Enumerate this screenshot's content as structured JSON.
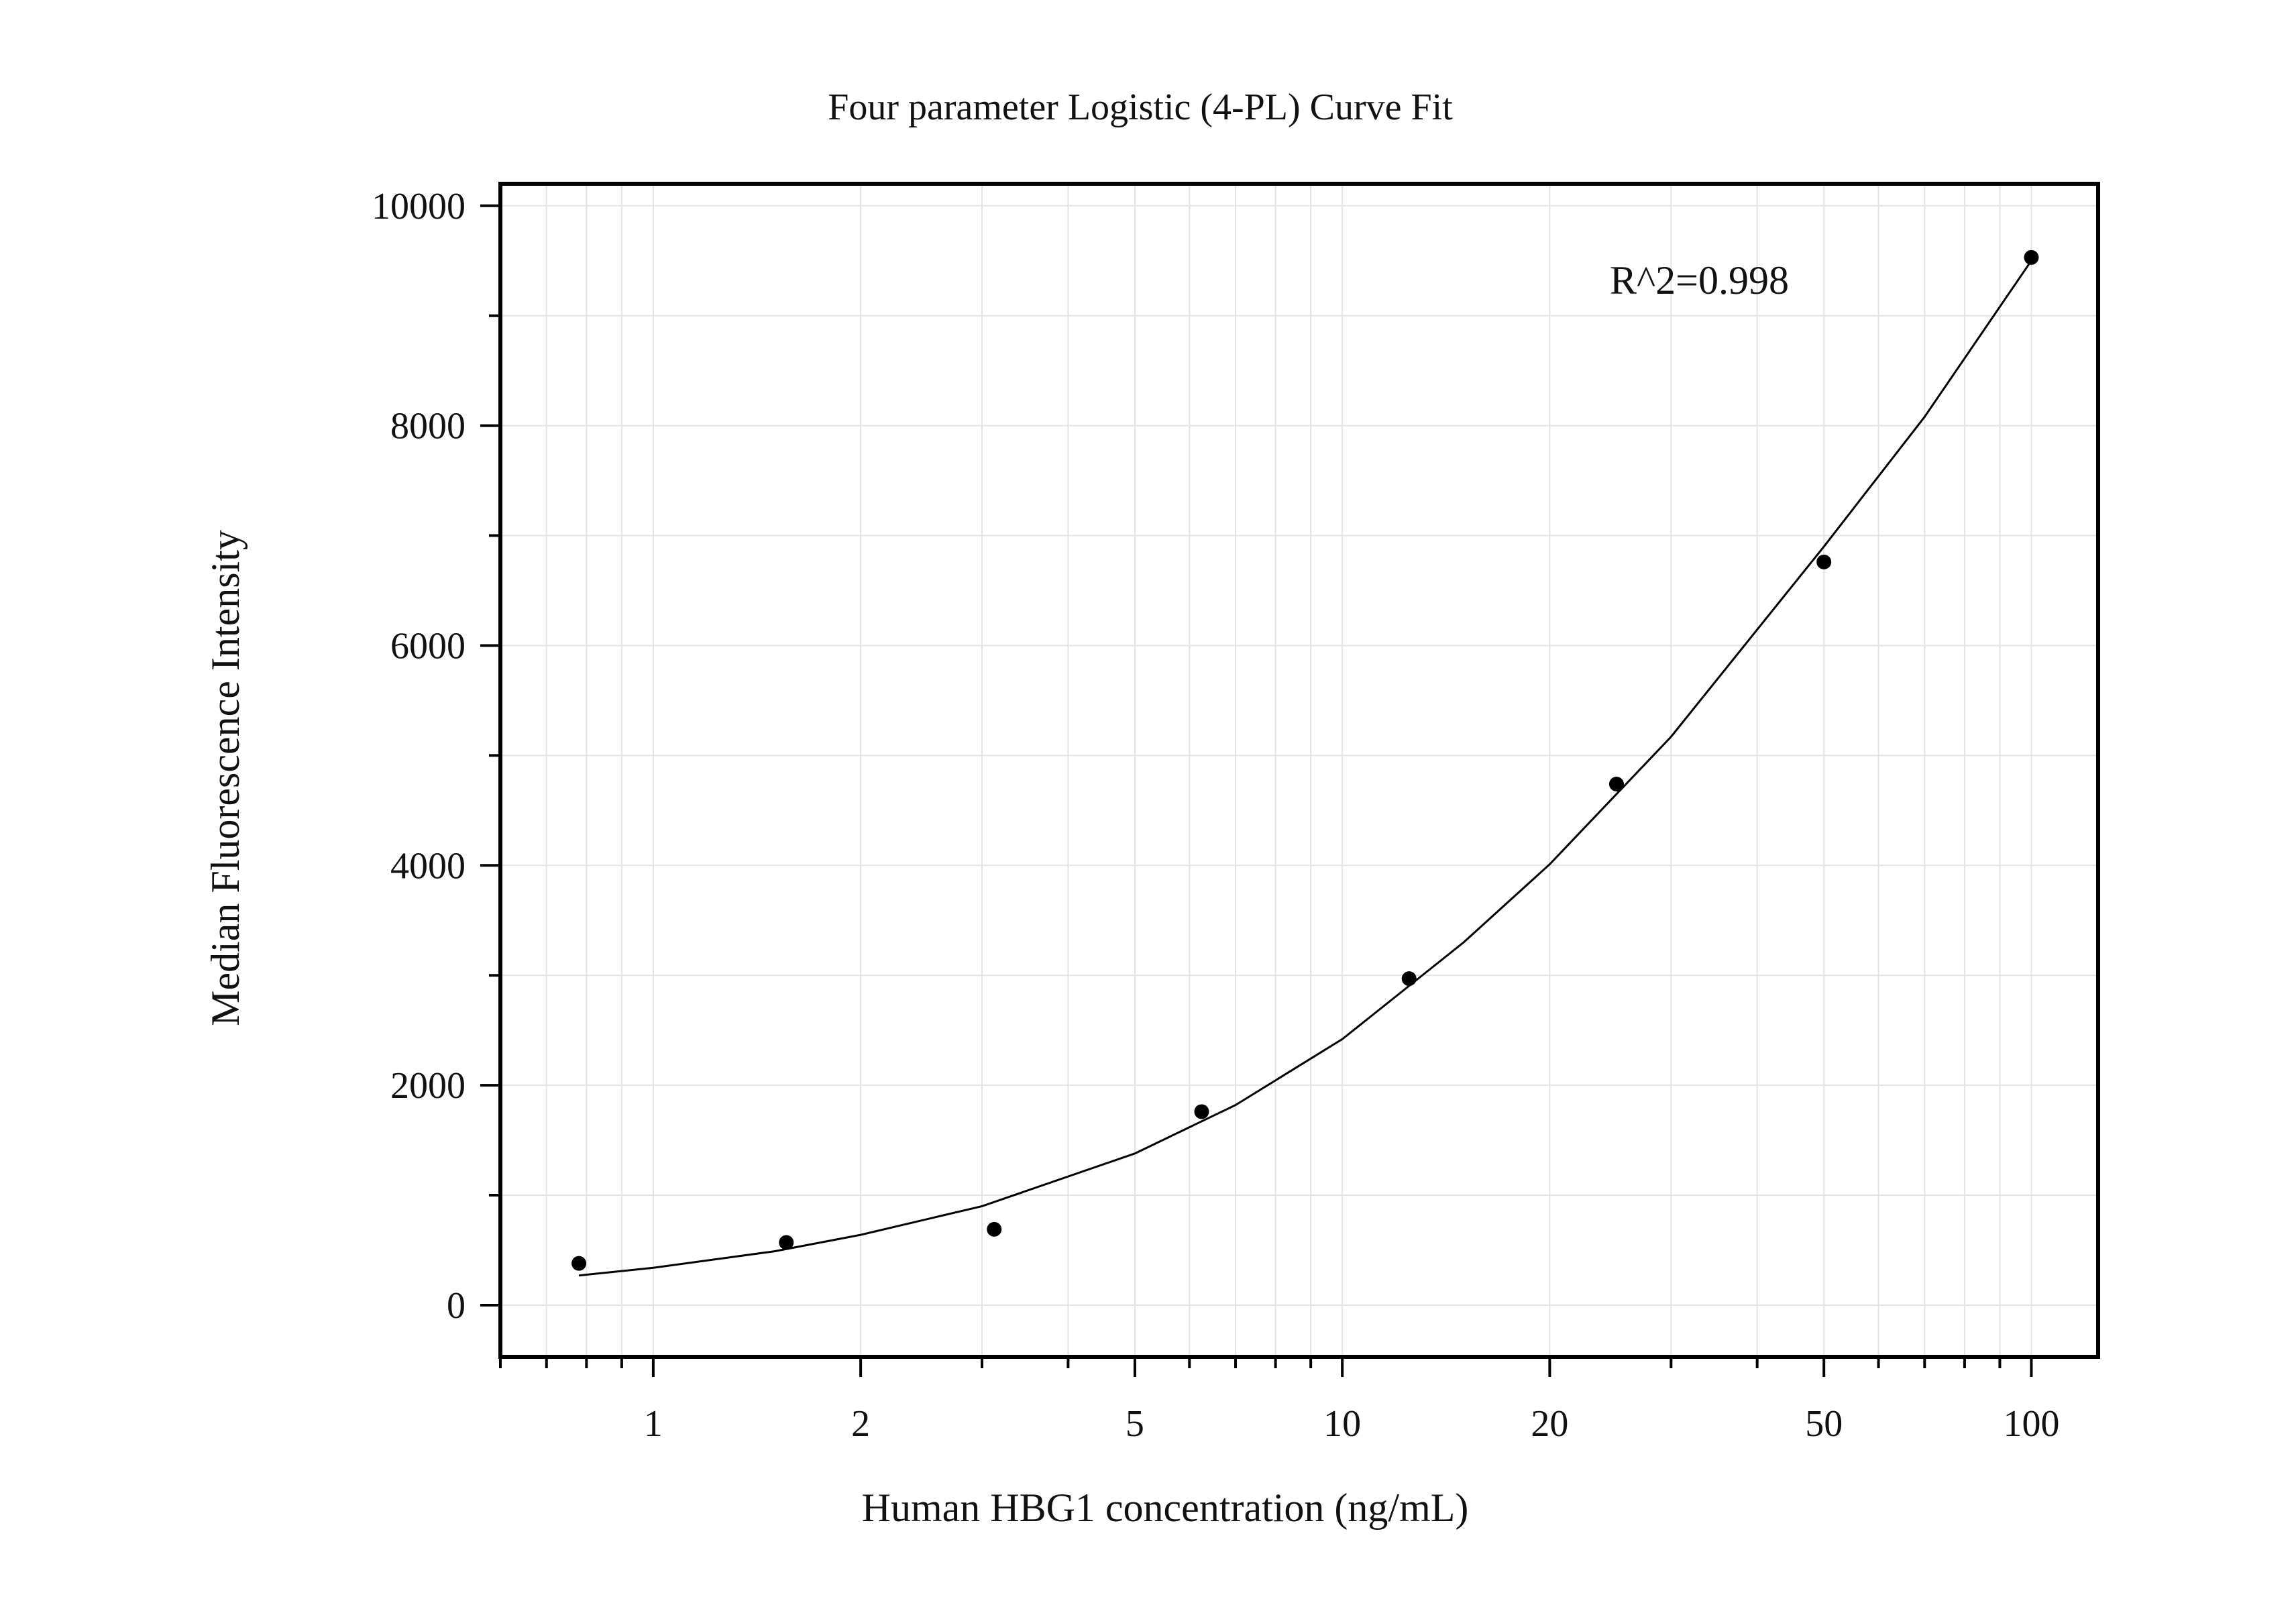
{
  "chart_data": {
    "type": "scatter",
    "title": "Four parameter Logistic (4-PL) Curve Fit",
    "xlabel": "Human HBG1 concentration (ng/mL)",
    "ylabel": "Median Fluorescence Intensity",
    "x_scale": "log",
    "xlim": [
      0.6,
      125
    ],
    "ylim": [
      -470,
      10200
    ],
    "x_ticks": [
      1,
      2,
      5,
      10,
      20,
      50,
      100
    ],
    "x_tick_labels": [
      "1",
      "2",
      "5",
      "10",
      "20",
      "50",
      "100"
    ],
    "y_ticks": [
      0,
      2000,
      4000,
      6000,
      8000,
      10000
    ],
    "y_tick_labels": [
      "0",
      "2000",
      "4000",
      "6000",
      "8000",
      "10000"
    ],
    "grid": true,
    "annotation": "R^2=0.998",
    "series": [
      {
        "type": "scatter",
        "x": [
          0.78,
          1.56,
          3.125,
          6.25,
          12.5,
          25,
          50,
          100
        ],
        "y": [
          380,
          570,
          690,
          1760,
          2970,
          4740,
          6760,
          9530
        ]
      },
      {
        "type": "line",
        "fit": "4-PL",
        "x": [
          0.78,
          1,
          1.5,
          2,
          3,
          5,
          7,
          10,
          15,
          20,
          30,
          50,
          70,
          100
        ],
        "y": [
          270,
          340,
          490,
          640,
          900,
          1380,
          1820,
          2420,
          3300,
          4010,
          5170,
          6900,
          8080,
          9500
        ]
      }
    ],
    "colors": {
      "points": "#000000",
      "line": "#000000",
      "grid": "#e3e3e3",
      "frame": "#000000"
    }
  }
}
